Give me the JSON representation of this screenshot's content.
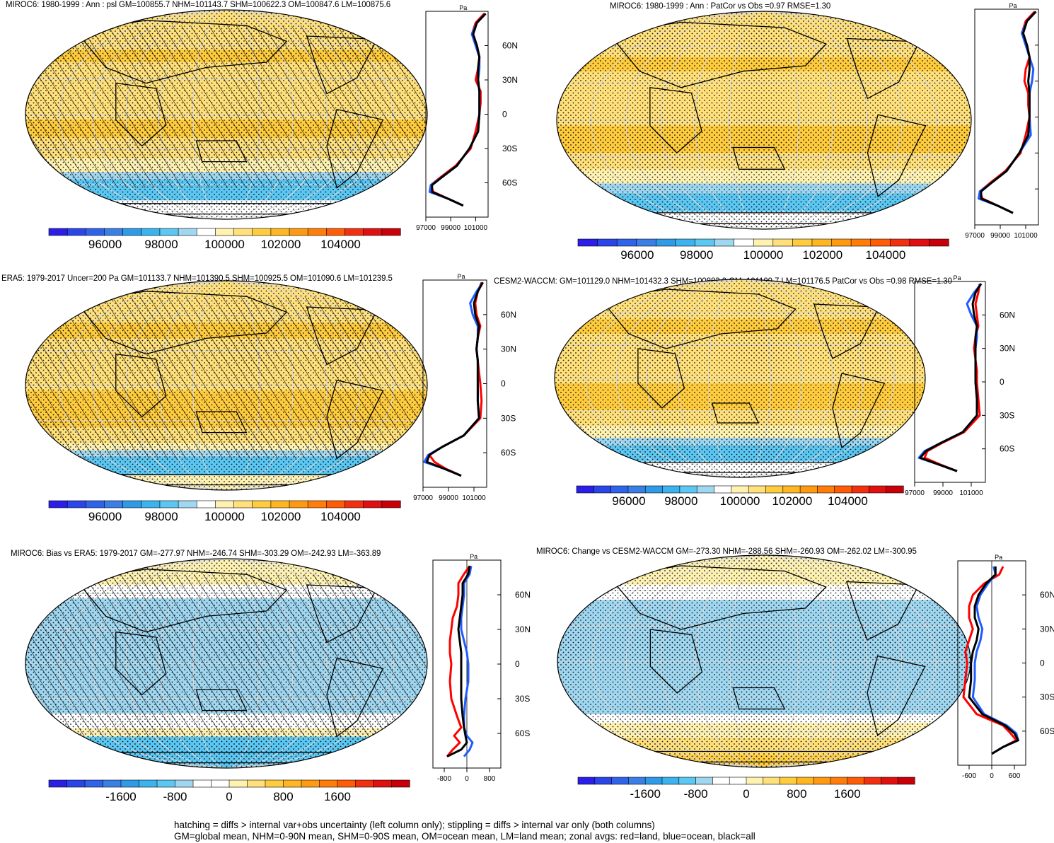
{
  "colors": {
    "ocean_blue": "#1e5cff",
    "land_red": "#ff0000",
    "all_black": "#000000",
    "full_scale": [
      "#2b1ee6",
      "#2a45e8",
      "#2f63ea",
      "#3a7fe6",
      "#2f9be8",
      "#3ab3ee",
      "#5bc7f2",
      "#9fd6f0",
      "#ffffff",
      "#fff2b0",
      "#ffe07a",
      "#ffcc3e",
      "#ffb620",
      "#ff9a10",
      "#ff7d08",
      "#ff5c05",
      "#f23010",
      "#e01010",
      "#c8000a"
    ],
    "diff_scale": [
      "#2b1ee6",
      "#2a45e8",
      "#2f63ea",
      "#3a7fe6",
      "#2f9be8",
      "#3ab3ee",
      "#5bc7f2",
      "#9fd6f0",
      "#ffffff",
      "#ffffff",
      "#fff2b0",
      "#ffe07a",
      "#ffcc3e",
      "#ffb620",
      "#ff9a10",
      "#ff7d08",
      "#ff5c05",
      "#f23010",
      "#e01010",
      "#c8000a"
    ]
  },
  "panels": [
    {
      "id": "p1",
      "title": "MIROC6: 1980-1999 : Ann : psl GM=100855.7 NHM=101143.7 SHM=100622.3 OM=100847.6 LM=100875.6",
      "unit": "Pa",
      "lat_labels": [
        "60N",
        "30N",
        "0",
        "30S",
        "60S"
      ],
      "x_ticks": [
        "97000",
        "99000",
        "101000"
      ],
      "colorbar_labels": [
        "96000",
        "98000",
        "100000",
        "102000",
        "104000"
      ],
      "hatch": true,
      "type": "full"
    },
    {
      "id": "p2",
      "title": "MIROC6: 1980-1999 : Ann : PatCor vs Obs =0.97 RMSE=1.30",
      "unit": "Pa",
      "lat_labels": [],
      "x_ticks": [
        "97000",
        "99000",
        "101000"
      ],
      "colorbar_labels": [
        "96000",
        "98000",
        "100000",
        "102000",
        "104000"
      ],
      "hatch": false,
      "type": "full"
    },
    {
      "id": "p3",
      "title": "ERA5: 1979-2017 Uncer=200 Pa GM=101133.7 NHM=101390.5 SHM=100925.5 OM=101090.6 LM=101239.5",
      "unit": "Pa",
      "lat_labels": [
        "60N",
        "30N",
        "0",
        "30S",
        "60S"
      ],
      "x_ticks": [
        "97000",
        "99000",
        "101000"
      ],
      "colorbar_labels": [
        "96000",
        "98000",
        "100000",
        "102000",
        "104000"
      ],
      "hatch": true,
      "type": "full"
    },
    {
      "id": "p4",
      "title": "CESM2-WACCM: GM=101129.0 NHM=101432.3 SHM=100883.2 OM=101109.7 LM=101176.5 PatCor vs Obs =0.98 RMSE=1.30",
      "unit": "Pa",
      "lat_labels": [
        "60N",
        "30N",
        "0",
        "30S",
        "60S"
      ],
      "x_ticks": [
        "97000",
        "99000",
        "101000"
      ],
      "colorbar_labels": [
        "96000",
        "98000",
        "100000",
        "102000",
        "104000"
      ],
      "hatch": false,
      "type": "full"
    },
    {
      "id": "p5",
      "title": "MIROC6: Bias vs ERA5: 1979-2017 GM=-277.97 NHM=-246.74 SHM=-303.29 OM=-242.93 LM=-363.89",
      "unit": "Pa",
      "lat_labels": [
        "60N",
        "30N",
        "0",
        "30S",
        "60S"
      ],
      "x_ticks": [
        "-800",
        "0",
        "800"
      ],
      "colorbar_labels": [
        "-1600",
        "-800",
        "0",
        "800",
        "1600"
      ],
      "hatch": true,
      "type": "diff"
    },
    {
      "id": "p6",
      "title": "MIROC6: Change vs CESM2-WACCM GM=-273.30 NHM=-288.56 SHM=-260.93 OM=-262.02 LM=-300.95",
      "unit": "Pa",
      "lat_labels": [
        "60N",
        "30N",
        "0",
        "30S",
        "60S"
      ],
      "x_ticks": [
        "-600",
        "0",
        "600"
      ],
      "colorbar_labels": [
        "-1600",
        "-800",
        "0",
        "800",
        "1600"
      ],
      "hatch": false,
      "type": "diff"
    }
  ],
  "footer": {
    "line1": "hatching = diffs > internal var+obs uncertainty (left column only); stippling = diffs > internal var only (both columns)",
    "line2": "GM=global mean, NHM=0-90N mean, SHM=0-90S mean, OM=ocean mean, LM=land mean; zonal avgs: red=land, blue=ocean, black=all"
  },
  "chart_data": [
    {
      "type": "line",
      "panel": "p1",
      "ylabel": "",
      "xlabel": "Pa",
      "xlim": [
        97000,
        102000
      ],
      "ylim": [
        -90,
        90
      ],
      "series": [
        {
          "name": "land",
          "x": [
            101700,
            101000,
            100700,
            101100,
            101300,
            101200,
            101000,
            101400,
            101400,
            101300,
            101000,
            100600,
            99400,
            98200,
            97400,
            97600,
            98800,
            100000
          ],
          "y": [
            88,
            80,
            70,
            60,
            50,
            40,
            30,
            20,
            10,
            0,
            -15,
            -30,
            -45,
            -55,
            -62,
            -68,
            -74,
            -80
          ]
        },
        {
          "name": "ocean",
          "x": [
            101800,
            101100,
            100700,
            101000,
            101300,
            101300,
            101200,
            101300,
            101300,
            101300,
            101200,
            100500,
            99500,
            98300,
            97400,
            97300,
            98800,
            100000
          ],
          "y": [
            88,
            80,
            70,
            60,
            50,
            40,
            30,
            20,
            10,
            0,
            -15,
            -30,
            -45,
            -55,
            -62,
            -68,
            -74,
            -80
          ]
        },
        {
          "name": "all",
          "x": [
            101800,
            101100,
            100800,
            101100,
            101300,
            101200,
            101200,
            101300,
            101300,
            101300,
            101200,
            100500,
            99500,
            98300,
            97500,
            97500,
            98800,
            100000
          ],
          "y": [
            88,
            80,
            70,
            60,
            50,
            40,
            30,
            20,
            10,
            0,
            -15,
            -30,
            -45,
            -55,
            -62,
            -68,
            -74,
            -80
          ]
        }
      ]
    },
    {
      "type": "line",
      "panel": "p2",
      "ylabel": "",
      "xlabel": "Pa",
      "xlim": [
        97000,
        102000
      ],
      "ylim": [
        -90,
        90
      ],
      "series": [
        {
          "name": "land",
          "x": [
            101700,
            101000,
            100700,
            101100,
            101300,
            101000,
            100900,
            101200,
            101200,
            101300,
            101000,
            100600,
            99400,
            98200,
            97400,
            97600,
            98800,
            100000
          ],
          "y": [
            88,
            80,
            70,
            60,
            50,
            40,
            30,
            20,
            10,
            0,
            -15,
            -30,
            -45,
            -55,
            -62,
            -68,
            -74,
            -80
          ]
        },
        {
          "name": "ocean",
          "x": [
            101800,
            101100,
            100700,
            101000,
            101300,
            101600,
            101500,
            101300,
            101300,
            101300,
            101400,
            100500,
            99500,
            98300,
            97400,
            97300,
            98800,
            100000
          ],
          "y": [
            88,
            80,
            70,
            60,
            50,
            40,
            30,
            20,
            10,
            0,
            -15,
            -30,
            -45,
            -55,
            -62,
            -68,
            -74,
            -80
          ]
        },
        {
          "name": "all",
          "x": [
            101800,
            101100,
            100800,
            101100,
            101300,
            101300,
            101200,
            101300,
            101300,
            101300,
            101200,
            100500,
            99500,
            98300,
            97500,
            97500,
            98800,
            100000
          ],
          "y": [
            88,
            80,
            70,
            60,
            50,
            40,
            30,
            20,
            10,
            0,
            -15,
            -30,
            -45,
            -55,
            -62,
            -68,
            -74,
            -80
          ]
        }
      ]
    },
    {
      "type": "line",
      "panel": "p3",
      "ylabel": "",
      "xlabel": "Pa",
      "xlim": [
        97000,
        102000
      ],
      "ylim": [
        -90,
        90
      ],
      "series": [
        {
          "name": "land",
          "x": [
            101600,
            101300,
            101100,
            101200,
            101500,
            101300,
            101200,
            101300,
            101400,
            101500,
            101600,
            101500,
            100200,
            98500,
            97500,
            97900,
            98800,
            100000
          ],
          "y": [
            88,
            80,
            70,
            60,
            50,
            40,
            30,
            20,
            10,
            0,
            -15,
            -30,
            -45,
            -55,
            -62,
            -68,
            -74,
            -80
          ]
        },
        {
          "name": "ocean",
          "x": [
            101700,
            101200,
            100700,
            100900,
            101300,
            101300,
            101200,
            101300,
            101300,
            101300,
            101300,
            101400,
            100200,
            98500,
            97400,
            97100,
            98700,
            100000
          ],
          "y": [
            88,
            80,
            70,
            60,
            50,
            40,
            30,
            20,
            10,
            0,
            -15,
            -30,
            -45,
            -55,
            -62,
            -68,
            -74,
            -80
          ]
        },
        {
          "name": "all",
          "x": [
            101700,
            101300,
            101000,
            101100,
            101400,
            101300,
            101200,
            101300,
            101300,
            101300,
            101300,
            101400,
            100200,
            98500,
            97500,
            97300,
            98700,
            100000
          ],
          "y": [
            88,
            80,
            70,
            60,
            50,
            40,
            30,
            20,
            10,
            0,
            -15,
            -30,
            -45,
            -55,
            -62,
            -68,
            -74,
            -80
          ]
        }
      ]
    },
    {
      "type": "line",
      "panel": "p4",
      "ylabel": "",
      "xlabel": "Pa",
      "xlim": [
        97000,
        102000
      ],
      "ylim": [
        -90,
        90
      ],
      "series": [
        {
          "name": "land",
          "x": [
            101600,
            101500,
            101300,
            101400,
            101500,
            101300,
            101200,
            101300,
            101400,
            101400,
            101500,
            101600,
            100500,
            98900,
            97900,
            97700,
            98800,
            100000
          ],
          "y": [
            88,
            80,
            70,
            60,
            50,
            40,
            30,
            20,
            10,
            0,
            -15,
            -30,
            -45,
            -55,
            -62,
            -68,
            -74,
            -80
          ]
        },
        {
          "name": "ocean",
          "x": [
            101700,
            101200,
            100700,
            101000,
            101400,
            101400,
            101300,
            101300,
            101300,
            101300,
            101400,
            101400,
            100400,
            98800,
            97700,
            97300,
            98700,
            100000
          ],
          "y": [
            88,
            80,
            70,
            60,
            50,
            40,
            30,
            20,
            10,
            0,
            -15,
            -30,
            -45,
            -55,
            -62,
            -68,
            -74,
            -80
          ]
        },
        {
          "name": "all",
          "x": [
            101700,
            101300,
            101100,
            101200,
            101400,
            101300,
            101300,
            101300,
            101300,
            101300,
            101400,
            101400,
            100400,
            98800,
            97800,
            97400,
            98700,
            100000
          ],
          "y": [
            88,
            80,
            70,
            60,
            50,
            40,
            30,
            20,
            10,
            0,
            -15,
            -30,
            -45,
            -55,
            -62,
            -68,
            -74,
            -80
          ]
        }
      ]
    },
    {
      "type": "line",
      "panel": "p5",
      "ylabel": "",
      "xlabel": "Pa",
      "xlim": [
        -1200,
        1200
      ],
      "ylim": [
        -90,
        90
      ],
      "series": [
        {
          "name": "land",
          "x": [
            100,
            -100,
            -300,
            -300,
            -350,
            -500,
            -550,
            -600,
            -600,
            -550,
            -600,
            -550,
            -350,
            -200,
            -450,
            -250,
            -500,
            -700
          ],
          "y": [
            85,
            78,
            70,
            60,
            50,
            40,
            30,
            20,
            10,
            0,
            -15,
            -30,
            -45,
            -55,
            -62,
            -68,
            -74,
            -80
          ]
        },
        {
          "name": "ocean",
          "x": [
            150,
            100,
            -100,
            -100,
            -150,
            -200,
            -200,
            -100,
            0,
            50,
            50,
            -50,
            -100,
            -100,
            0,
            200,
            100,
            -100
          ],
          "y": [
            85,
            78,
            70,
            60,
            50,
            40,
            30,
            20,
            10,
            0,
            -15,
            -30,
            -45,
            -55,
            -62,
            -68,
            -74,
            -80
          ]
        },
        {
          "name": "all",
          "x": [
            100,
            50,
            -150,
            -150,
            -200,
            -250,
            -300,
            -250,
            -200,
            -200,
            -200,
            -200,
            -150,
            -100,
            -50,
            0,
            -200,
            -700
          ],
          "y": [
            85,
            78,
            70,
            60,
            50,
            40,
            30,
            20,
            10,
            0,
            -15,
            -30,
            -45,
            -55,
            -62,
            -68,
            -74,
            -80
          ]
        }
      ]
    },
    {
      "type": "line",
      "panel": "p6",
      "ylabel": "",
      "xlabel": "Pa",
      "xlim": [
        -900,
        900
      ],
      "ylim": [
        -90,
        90
      ],
      "series": [
        {
          "name": "land",
          "x": [
            300,
            200,
            -200,
            -500,
            -600,
            -600,
            -500,
            -600,
            -700,
            -650,
            -700,
            -750,
            -400,
            300,
            500,
            650,
            300,
            0
          ],
          "y": [
            85,
            78,
            70,
            60,
            50,
            40,
            30,
            20,
            10,
            0,
            -15,
            -30,
            -45,
            -55,
            -62,
            -68,
            -74,
            -80
          ]
        },
        {
          "name": "ocean",
          "x": [
            50,
            100,
            -100,
            -300,
            -400,
            -350,
            -250,
            -300,
            -400,
            -450,
            -450,
            -500,
            -200,
            400,
            650,
            700,
            300,
            0
          ],
          "y": [
            85,
            78,
            70,
            60,
            50,
            40,
            30,
            20,
            10,
            0,
            -15,
            -30,
            -45,
            -55,
            -62,
            -68,
            -74,
            -80
          ]
        },
        {
          "name": "all",
          "x": [
            100,
            100,
            -150,
            -350,
            -450,
            -450,
            -350,
            -400,
            -500,
            -550,
            -550,
            -600,
            -250,
            350,
            600,
            700,
            300,
            0
          ],
          "y": [
            85,
            78,
            70,
            60,
            50,
            40,
            30,
            20,
            10,
            0,
            -15,
            -30,
            -45,
            -55,
            -62,
            -68,
            -74,
            -80
          ]
        }
      ]
    }
  ]
}
